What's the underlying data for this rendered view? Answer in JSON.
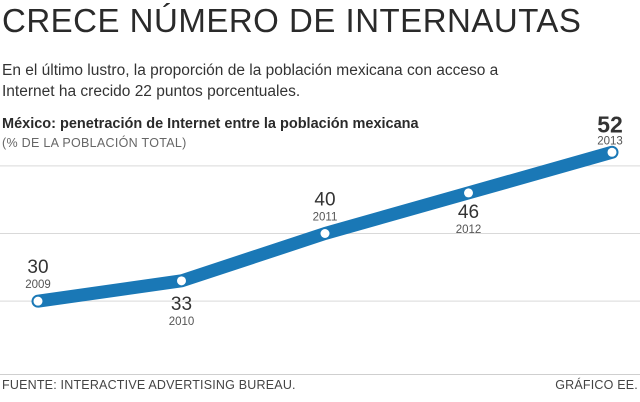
{
  "header": {
    "title": "CRECE NÚMERO DE INTERNAUTAS",
    "subtitle": "En el último lustro, la proporción de la población mexicana con acceso a Internet ha crecido 22 puntos porcentuales."
  },
  "chart_data": {
    "type": "line",
    "title": "México: penetración de Internet entre la población mexicana",
    "subtitle": "(% DE LA POBLACIÓN TOTAL)",
    "xlabel": "",
    "ylabel": "",
    "x": [
      "2009",
      "2010",
      "2011",
      "2012",
      "2013"
    ],
    "series": [
      {
        "values": [
          30,
          33,
          40,
          46,
          52
        ]
      }
    ],
    "ylim": [
      25,
      55
    ],
    "grid": true,
    "legend": "none"
  },
  "colors": {
    "line": "#1a78b6",
    "marker": "#ffffff",
    "grid": "#d9d9d9"
  },
  "footer": {
    "source": "FUENTE: INTERACTIVE ADVERTISING BUREAU.",
    "credit": "GRÁFICO EE."
  }
}
